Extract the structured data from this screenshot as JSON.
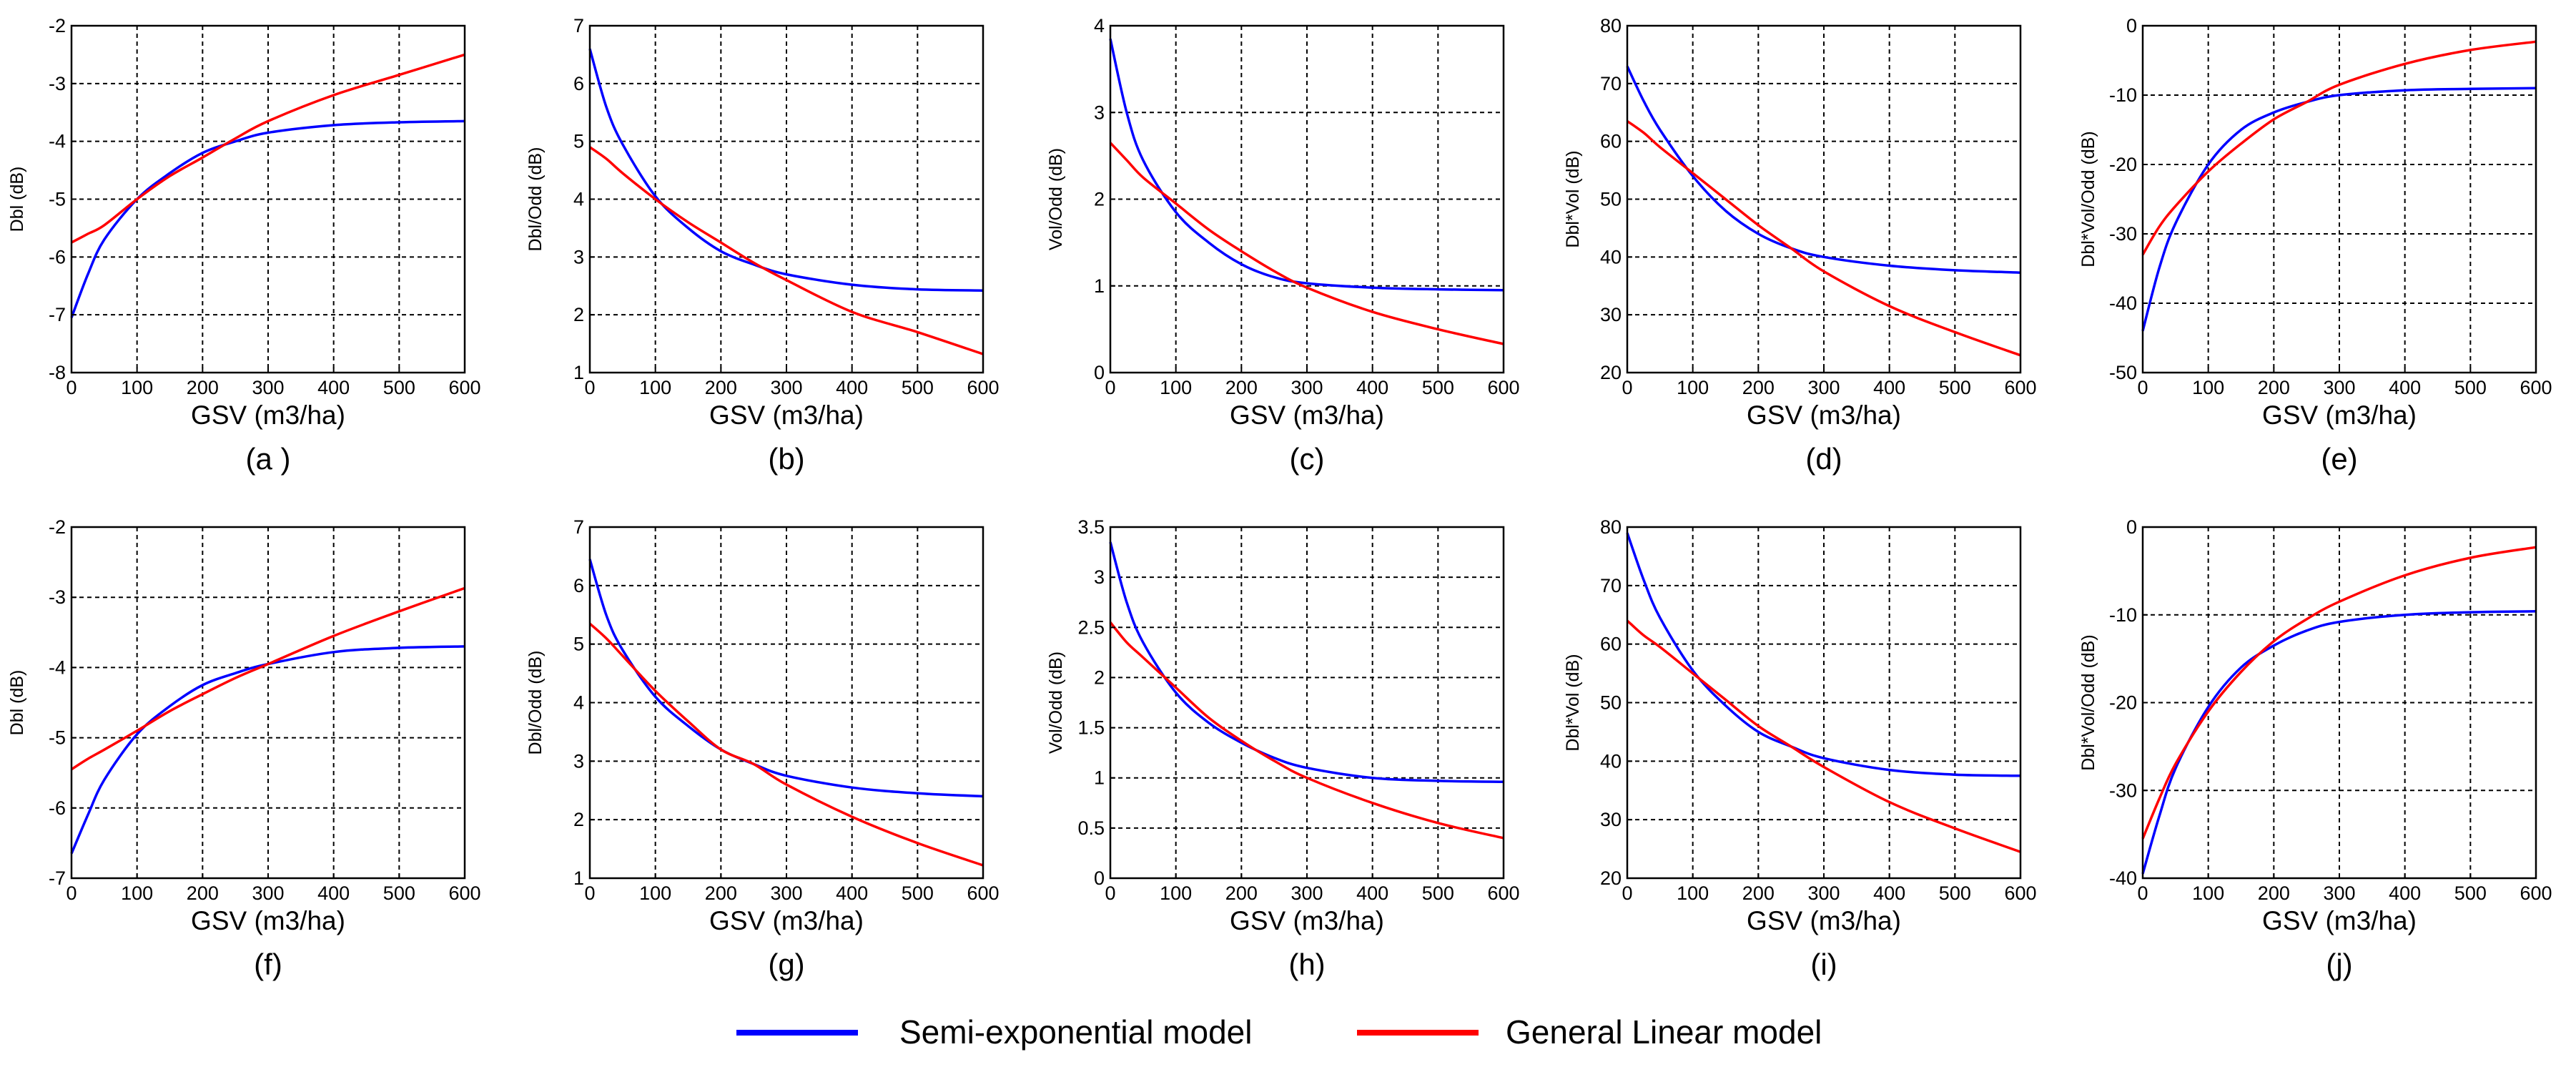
{
  "legend": {
    "semi_exponential": "Semi-exponential model",
    "general_linear": "General  Linear model"
  },
  "colors": {
    "semi_exponential": "#0000ff",
    "general_linear": "#ff0000"
  },
  "chart_data": [
    {
      "id": "a",
      "caption": "(a )",
      "type": "line",
      "xlabel": "GSV  (m3/ha)",
      "ylabel": "Dbl (dB)",
      "xlim": [
        0,
        600
      ],
      "ylim": [
        -8,
        -2
      ],
      "xticks": [
        "0",
        "100",
        "200",
        "300",
        "400",
        "500",
        "600"
      ],
      "yticks": [
        "-8",
        "-7",
        "-6",
        "-5",
        "-4",
        "-3",
        "-2"
      ],
      "x": [
        0,
        25,
        50,
        100,
        150,
        200,
        250,
        300,
        400,
        500,
        600
      ],
      "series": [
        {
          "name": "Semi-exponential model",
          "values": [
            -7.05,
            -6.3,
            -5.7,
            -5.0,
            -4.55,
            -4.2,
            -4.0,
            -3.85,
            -3.72,
            -3.67,
            -3.65
          ]
        },
        {
          "name": "General  Linear model",
          "values": [
            -5.75,
            -5.6,
            -5.45,
            -5.0,
            -4.6,
            -4.28,
            -3.95,
            -3.65,
            -3.2,
            -2.85,
            -2.5
          ]
        }
      ]
    },
    {
      "id": "b",
      "caption": "(b)",
      "type": "line",
      "xlabel": "GSV  (m3/ha)",
      "ylabel": "Dbl/Odd (dB)",
      "xlim": [
        0,
        600
      ],
      "ylim": [
        1,
        7
      ],
      "xticks": [
        "0",
        "100",
        "200",
        "300",
        "400",
        "500",
        "600"
      ],
      "yticks": [
        "1",
        "2",
        "3",
        "4",
        "5",
        "6",
        "7"
      ],
      "x": [
        0,
        25,
        50,
        100,
        150,
        200,
        250,
        300,
        400,
        500,
        600
      ],
      "series": [
        {
          "name": "Semi-exponential model",
          "values": [
            6.6,
            5.6,
            4.95,
            4.05,
            3.5,
            3.1,
            2.87,
            2.7,
            2.52,
            2.44,
            2.42
          ]
        },
        {
          "name": "General  Linear model",
          "values": [
            4.9,
            4.7,
            4.45,
            4.0,
            3.6,
            3.25,
            2.9,
            2.6,
            2.05,
            1.7,
            1.32
          ]
        }
      ]
    },
    {
      "id": "c",
      "caption": "(c)",
      "type": "line",
      "xlabel": "GSV  (m3/ha)",
      "ylabel": "Vol/Odd (dB)",
      "xlim": [
        0,
        600
      ],
      "ylim": [
        0,
        4
      ],
      "xticks": [
        "0",
        "100",
        "200",
        "300",
        "400",
        "500",
        "600"
      ],
      "yticks": [
        "0",
        "1",
        "2",
        "3",
        "4"
      ],
      "x": [
        0,
        25,
        50,
        100,
        150,
        200,
        250,
        300,
        400,
        500,
        600
      ],
      "series": [
        {
          "name": "Semi-exponential model",
          "values": [
            3.85,
            3.0,
            2.45,
            1.85,
            1.5,
            1.25,
            1.1,
            1.03,
            0.98,
            0.96,
            0.95
          ]
        },
        {
          "name": "General  Linear model",
          "values": [
            2.65,
            2.45,
            2.25,
            1.95,
            1.65,
            1.4,
            1.17,
            0.98,
            0.7,
            0.5,
            0.33
          ]
        }
      ]
    },
    {
      "id": "d",
      "caption": "(d)",
      "type": "line",
      "xlabel": "GSV  (m3/ha)",
      "ylabel": "Dbl*Vol (dB)",
      "xlim": [
        0,
        600
      ],
      "ylim": [
        20,
        80
      ],
      "xticks": [
        "0",
        "100",
        "200",
        "300",
        "400",
        "500",
        "600"
      ],
      "yticks": [
        "20",
        "30",
        "40",
        "50",
        "60",
        "70",
        "80"
      ],
      "x": [
        0,
        25,
        50,
        100,
        150,
        200,
        250,
        300,
        400,
        500,
        600
      ],
      "series": [
        {
          "name": "Semi-exponential model",
          "values": [
            73,
            67,
            62,
            54,
            48,
            44,
            41.5,
            40,
            38.5,
            37.7,
            37.3
          ]
        },
        {
          "name": "General  Linear model",
          "values": [
            63.5,
            61.5,
            59,
            54.5,
            50,
            45.5,
            41.5,
            37.5,
            31.5,
            27,
            23
          ]
        }
      ]
    },
    {
      "id": "e",
      "caption": "(e)",
      "type": "line",
      "xlabel": "GSV  (m3/ha)",
      "ylabel": "Dbl*Vol/Odd (dB)",
      "xlim": [
        0,
        600
      ],
      "ylim": [
        -50,
        0
      ],
      "xticks": [
        "0",
        "100",
        "200",
        "300",
        "400",
        "500",
        "600"
      ],
      "yticks": [
        "-50",
        "-40",
        "-30",
        "-20",
        "-10",
        "0"
      ],
      "x": [
        0,
        25,
        50,
        100,
        150,
        200,
        250,
        300,
        400,
        500,
        600
      ],
      "series": [
        {
          "name": "Semi-exponential model",
          "values": [
            -44,
            -35,
            -28.5,
            -20,
            -15,
            -12.5,
            -11,
            -10,
            -9.3,
            -9.1,
            -9
          ]
        },
        {
          "name": "General  Linear model",
          "values": [
            -33,
            -29,
            -26,
            -21,
            -17,
            -13.5,
            -11,
            -8.5,
            -5.5,
            -3.5,
            -2.3
          ]
        }
      ]
    },
    {
      "id": "f",
      "caption": "(f)",
      "type": "line",
      "xlabel": "GSV  (m3/ha)",
      "ylabel": "Dbl (dB)",
      "xlim": [
        0,
        600
      ],
      "ylim": [
        -7,
        -2
      ],
      "xticks": [
        "0",
        "100",
        "200",
        "300",
        "400",
        "500",
        "600"
      ],
      "yticks": [
        "-7",
        "-6",
        "-5",
        "-4",
        "-3",
        "-2"
      ],
      "x": [
        0,
        25,
        50,
        100,
        150,
        200,
        250,
        300,
        400,
        500,
        600
      ],
      "series": [
        {
          "name": "Semi-exponential model",
          "values": [
            -6.65,
            -6.1,
            -5.6,
            -4.95,
            -4.55,
            -4.25,
            -4.08,
            -3.95,
            -3.78,
            -3.72,
            -3.7
          ]
        },
        {
          "name": "General  Linear model",
          "values": [
            -5.45,
            -5.3,
            -5.17,
            -4.9,
            -4.62,
            -4.38,
            -4.15,
            -3.95,
            -3.55,
            -3.2,
            -2.87
          ]
        }
      ]
    },
    {
      "id": "g",
      "caption": "(g)",
      "type": "line",
      "xlabel": "GSV  (m3/ha)",
      "ylabel": "Dbl/Odd (dB)",
      "xlim": [
        0,
        600
      ],
      "ylim": [
        1,
        7
      ],
      "xticks": [
        "0",
        "100",
        "200",
        "300",
        "400",
        "500",
        "600"
      ],
      "yticks": [
        "1",
        "2",
        "3",
        "4",
        "5",
        "6",
        "7"
      ],
      "x": [
        0,
        25,
        50,
        100,
        150,
        200,
        250,
        300,
        400,
        500,
        600
      ],
      "series": [
        {
          "name": "Semi-exponential model",
          "values": [
            6.45,
            5.5,
            4.9,
            4.1,
            3.6,
            3.2,
            2.95,
            2.75,
            2.55,
            2.45,
            2.4
          ]
        },
        {
          "name": "General  Linear model",
          "values": [
            5.35,
            5.1,
            4.8,
            4.2,
            3.68,
            3.2,
            2.95,
            2.6,
            2.05,
            1.6,
            1.22
          ]
        }
      ]
    },
    {
      "id": "h",
      "caption": "(h)",
      "type": "line",
      "xlabel": "GSV  (m3/ha)",
      "ylabel": "Vol/Odd (dB)",
      "xlim": [
        0,
        600
      ],
      "ylim": [
        0,
        3.5
      ],
      "xticks": [
        "0",
        "100",
        "200",
        "300",
        "400",
        "500",
        "600"
      ],
      "yticks": [
        "0",
        "0.5",
        "1",
        "1.5",
        "2",
        "2.5",
        "3",
        "3.5"
      ],
      "x": [
        0,
        25,
        50,
        100,
        150,
        200,
        250,
        300,
        400,
        500,
        600
      ],
      "series": [
        {
          "name": "Semi-exponential model",
          "values": [
            3.35,
            2.75,
            2.35,
            1.85,
            1.55,
            1.35,
            1.2,
            1.1,
            1.0,
            0.97,
            0.96
          ]
        },
        {
          "name": "General  Linear model",
          "values": [
            2.55,
            2.35,
            2.2,
            1.9,
            1.6,
            1.37,
            1.17,
            1.0,
            0.75,
            0.55,
            0.4
          ]
        }
      ]
    },
    {
      "id": "i",
      "caption": "(i)",
      "type": "line",
      "xlabel": "GSV  (m3/ha)",
      "ylabel": "Dbl*Vol (dB)",
      "xlim": [
        0,
        600
      ],
      "ylim": [
        20,
        80
      ],
      "xticks": [
        "0",
        "100",
        "200",
        "300",
        "400",
        "500",
        "600"
      ],
      "yticks": [
        "20",
        "30",
        "40",
        "50",
        "60",
        "70",
        "80"
      ],
      "x": [
        0,
        25,
        50,
        100,
        150,
        200,
        250,
        300,
        400,
        500,
        600
      ],
      "series": [
        {
          "name": "Semi-exponential model",
          "values": [
            79,
            71,
            64.5,
            55.5,
            49.5,
            45,
            42.5,
            40.5,
            38.5,
            37.7,
            37.5
          ]
        },
        {
          "name": "General  Linear model",
          "values": [
            64,
            61.5,
            59.5,
            55,
            50.5,
            46,
            42.5,
            39,
            33,
            28.5,
            24.5
          ]
        }
      ]
    },
    {
      "id": "j",
      "caption": "(j)",
      "type": "line",
      "xlabel": "GSV  (m3/ha)",
      "ylabel": "Dbl*Vol/Odd (dB)",
      "xlim": [
        0,
        600
      ],
      "ylim": [
        -40,
        0
      ],
      "xticks": [
        "0",
        "100",
        "200",
        "300",
        "400",
        "500",
        "600"
      ],
      "yticks": [
        "-40",
        "-30",
        "-20",
        "-10",
        "0"
      ],
      "x": [
        0,
        25,
        50,
        100,
        150,
        200,
        250,
        300,
        400,
        500,
        600
      ],
      "series": [
        {
          "name": "Semi-exponential model",
          "values": [
            -39.5,
            -33,
            -27.5,
            -20.5,
            -16,
            -13.5,
            -11.8,
            -10.8,
            -10,
            -9.7,
            -9.6
          ]
        },
        {
          "name": "General  Linear model",
          "values": [
            -35.5,
            -31,
            -27,
            -21,
            -16.5,
            -13,
            -10.5,
            -8.5,
            -5.5,
            -3.5,
            -2.3
          ]
        }
      ]
    }
  ]
}
